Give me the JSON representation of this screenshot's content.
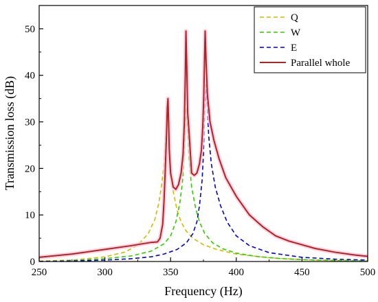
{
  "chart_data": {
    "type": "line",
    "title": "",
    "xlabel": "Frequency (Hz)",
    "ylabel": "Transmission loss (dB)",
    "xlim": [
      250,
      500
    ],
    "ylim": [
      0,
      55
    ],
    "xticks": [
      250,
      300,
      350,
      400,
      450,
      500
    ],
    "yticks": [
      0,
      10,
      20,
      30,
      40,
      50
    ],
    "xtick_labels": [
      "250",
      "300",
      "350",
      "400",
      "450",
      "500"
    ],
    "ytick_labels": [
      "0",
      "10",
      "20",
      "30",
      "40",
      "50"
    ],
    "grid": false,
    "legend_position": "top-right",
    "series": [
      {
        "name": "Q",
        "color": "#d4b800",
        "style": "dashed",
        "x": [
          250,
          275,
          300,
          315,
          325,
          333,
          338,
          341,
          343,
          345,
          346,
          347,
          348,
          349,
          350,
          352,
          355,
          358,
          362,
          367,
          375,
          385,
          400,
          425,
          450,
          475,
          500
        ],
        "y": [
          0.1,
          0.3,
          1.0,
          2.0,
          3.5,
          6.0,
          9.0,
          12.5,
          16.0,
          21.0,
          25.0,
          30.0,
          31.0,
          26.0,
          20.0,
          15.0,
          11.0,
          8.5,
          6.5,
          5.0,
          3.6,
          2.6,
          1.6,
          0.8,
          0.4,
          0.2,
          0.1
        ]
      },
      {
        "name": "W",
        "color": "#33cc00",
        "style": "dashed",
        "x": [
          250,
          275,
          300,
          320,
          335,
          345,
          350,
          354,
          357,
          359,
          360,
          361,
          362,
          363,
          364,
          366,
          369,
          372,
          376,
          382,
          390,
          400,
          415,
          435,
          460,
          480,
          500
        ],
        "y": [
          0.0,
          0.2,
          0.6,
          1.2,
          2.2,
          3.8,
          5.5,
          8.5,
          12.5,
          17.0,
          21.0,
          27.0,
          33.0,
          28.0,
          22.0,
          16.0,
          11.5,
          8.5,
          6.0,
          4.0,
          2.7,
          1.8,
          1.1,
          0.6,
          0.3,
          0.2,
          0.1
        ]
      },
      {
        "name": "E",
        "color": "#0000cc",
        "style": "dashed",
        "x": [
          250,
          275,
          300,
          320,
          335,
          345,
          355,
          362,
          367,
          370,
          372,
          374,
          375,
          376,
          377,
          378,
          379,
          381,
          384,
          388,
          393,
          400,
          410,
          425,
          450,
          475,
          500
        ],
        "y": [
          0.0,
          0.1,
          0.3,
          0.6,
          1.0,
          1.6,
          2.6,
          4.0,
          6.0,
          8.5,
          12.0,
          17.5,
          23.0,
          33.0,
          38.0,
          33.0,
          27.0,
          21.0,
          16.0,
          12.0,
          8.5,
          5.5,
          3.4,
          1.9,
          0.9,
          0.5,
          0.3
        ]
      },
      {
        "name": "Parallel whole",
        "color": "#b22222",
        "style": "solid",
        "x": [
          250,
          275,
          300,
          320,
          335,
          340,
          342,
          344,
          345,
          346,
          347,
          347.5,
          348,
          348.5,
          349,
          350,
          352,
          354,
          356,
          358,
          359.5,
          360.5,
          361.2,
          361.7,
          362.3,
          363,
          364,
          366,
          368,
          370,
          372,
          373.5,
          374.5,
          375.3,
          375.8,
          376.3,
          377,
          378,
          380,
          383,
          387,
          392,
          400,
          410,
          420,
          430,
          440,
          450,
          460,
          475,
          490,
          500
        ],
        "y": [
          0.9,
          1.6,
          2.6,
          3.4,
          4.1,
          4.2,
          5.0,
          8.0,
          13.0,
          20.0,
          28.0,
          33.0,
          35.0,
          30.0,
          24.0,
          19.0,
          16.0,
          15.5,
          16.5,
          19.0,
          23.0,
          30.0,
          40.0,
          49.5,
          42.0,
          32.0,
          28.0,
          19.0,
          18.5,
          19.0,
          21.0,
          24.0,
          29.0,
          36.0,
          43.0,
          49.5,
          43.0,
          36.0,
          30.0,
          26.0,
          22.0,
          18.0,
          14.0,
          10.0,
          7.5,
          5.5,
          4.4,
          3.6,
          2.8,
          2.0,
          1.4,
          1.1
        ]
      }
    ]
  }
}
